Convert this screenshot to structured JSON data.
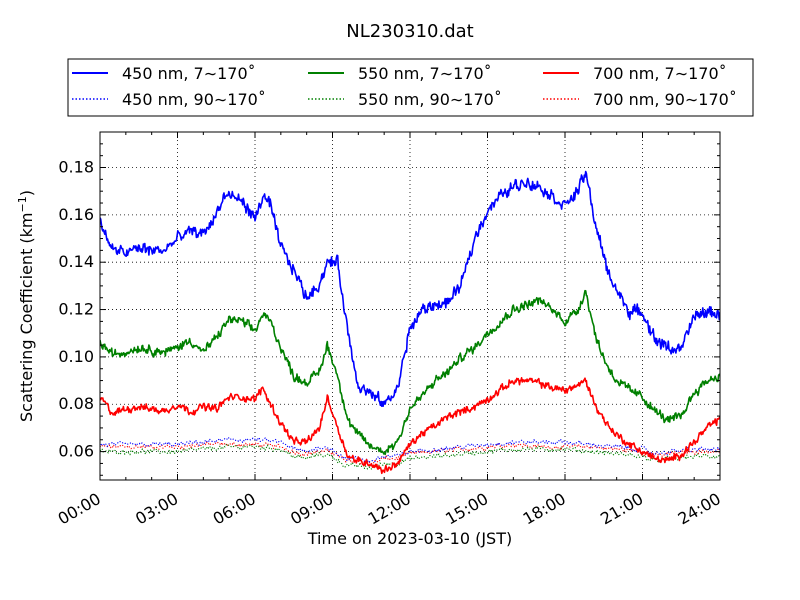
{
  "chart_data": {
    "type": "line",
    "title": "NL230310.dat",
    "xlabel": "Time on 2023-03-10 (JST)",
    "ylabel": "Scattering Coefficient (km",
    "ylabel_exp": "−1",
    "ylabel_close": ")",
    "xlim": [
      "00:00",
      "24:00"
    ],
    "ylim": [
      0.048,
      0.195
    ],
    "x_unit": "hours since 2023-03-10 00:00 JST",
    "x_ticks": [
      "00:00",
      "03:00",
      "06:00",
      "09:00",
      "12:00",
      "15:00",
      "18:00",
      "21:00",
      "24:00"
    ],
    "y_ticks": [
      "0.06",
      "0.08",
      "0.10",
      "0.12",
      "0.14",
      "0.16",
      "0.18"
    ],
    "grid": true,
    "legend_position": "top",
    "legend_columns": 3,
    "series": [
      {
        "name": "450 nm, 7∼170˚",
        "color": "#0000ff",
        "style": "solid",
        "x": [
          0,
          0.5,
          1,
          1.5,
          2,
          2.5,
          3,
          3.5,
          4,
          4.5,
          4.8,
          5,
          5.5,
          6,
          6.3,
          6.6,
          6.9,
          7.2,
          7.5,
          8,
          8.5,
          8.8,
          9.2,
          9.6,
          10,
          10.5,
          11,
          11.5,
          12,
          12.5,
          13,
          13.5,
          14,
          14.5,
          15,
          15.5,
          16,
          16.5,
          17,
          17.5,
          18,
          18.5,
          18.8,
          19.2,
          19.6,
          20,
          20.5,
          21,
          21.5,
          22,
          22.5,
          23,
          23.5,
          24
        ],
        "y": [
          0.157,
          0.145,
          0.144,
          0.146,
          0.145,
          0.145,
          0.15,
          0.153,
          0.152,
          0.16,
          0.168,
          0.168,
          0.166,
          0.158,
          0.168,
          0.164,
          0.15,
          0.142,
          0.137,
          0.125,
          0.131,
          0.14,
          0.14,
          0.11,
          0.088,
          0.084,
          0.08,
          0.086,
          0.112,
          0.12,
          0.122,
          0.123,
          0.131,
          0.15,
          0.162,
          0.168,
          0.172,
          0.174,
          0.172,
          0.168,
          0.164,
          0.17,
          0.178,
          0.155,
          0.138,
          0.128,
          0.119,
          0.119,
          0.107,
          0.104,
          0.103,
          0.117,
          0.119,
          0.118
        ]
      },
      {
        "name": "450 nm, 90∼170˚",
        "color": "#0000ff",
        "style": "dotted",
        "x": [
          0,
          1,
          2,
          3,
          4,
          5,
          6,
          7,
          7.5,
          8,
          8.5,
          9,
          9.5,
          10,
          10.5,
          11,
          11.5,
          12,
          13,
          14,
          15,
          16,
          17,
          18,
          19,
          20,
          21,
          21.5,
          22,
          23,
          24
        ],
        "y": [
          0.063,
          0.063,
          0.063,
          0.063,
          0.064,
          0.065,
          0.065,
          0.064,
          0.061,
          0.06,
          0.062,
          0.061,
          0.057,
          0.057,
          0.056,
          0.058,
          0.058,
          0.06,
          0.061,
          0.062,
          0.063,
          0.064,
          0.064,
          0.064,
          0.063,
          0.062,
          0.061,
          0.059,
          0.06,
          0.061,
          0.061
        ]
      },
      {
        "name": "550 nm, 7∼170˚",
        "color": "#008000",
        "style": "solid",
        "x": [
          0,
          0.5,
          1,
          1.5,
          2,
          2.5,
          3,
          3.5,
          4,
          4.5,
          5,
          5.5,
          6,
          6.3,
          6.6,
          7,
          7.5,
          8,
          8.5,
          8.8,
          9.2,
          9.6,
          10,
          10.5,
          11,
          11.5,
          12,
          12.5,
          13,
          13.5,
          14,
          14.5,
          15,
          15.5,
          16,
          16.5,
          17,
          17.5,
          18,
          18.5,
          18.8,
          19.2,
          19.6,
          20,
          20.5,
          21,
          21.5,
          22,
          22.5,
          23,
          23.5,
          24
        ],
        "y": [
          0.106,
          0.101,
          0.102,
          0.104,
          0.103,
          0.102,
          0.104,
          0.107,
          0.102,
          0.108,
          0.116,
          0.115,
          0.111,
          0.118,
          0.115,
          0.104,
          0.092,
          0.089,
          0.094,
          0.105,
          0.092,
          0.073,
          0.067,
          0.062,
          0.06,
          0.064,
          0.078,
          0.084,
          0.09,
          0.094,
          0.1,
          0.104,
          0.11,
          0.115,
          0.12,
          0.122,
          0.124,
          0.12,
          0.115,
          0.12,
          0.128,
          0.108,
          0.097,
          0.09,
          0.086,
          0.083,
          0.077,
          0.073,
          0.075,
          0.085,
          0.09,
          0.092
        ]
      },
      {
        "name": "550 nm, 90∼170˚",
        "color": "#008000",
        "style": "dotted",
        "x": [
          0,
          1,
          2,
          3,
          4,
          5,
          6,
          7,
          7.5,
          8,
          8.5,
          9,
          9.5,
          10,
          10.5,
          11,
          11.5,
          12,
          13,
          14,
          15,
          16,
          17,
          18,
          19,
          20,
          21,
          21.5,
          22,
          23,
          24
        ],
        "y": [
          0.06,
          0.06,
          0.06,
          0.06,
          0.061,
          0.062,
          0.062,
          0.061,
          0.058,
          0.057,
          0.059,
          0.058,
          0.054,
          0.054,
          0.053,
          0.055,
          0.055,
          0.057,
          0.058,
          0.059,
          0.06,
          0.061,
          0.061,
          0.061,
          0.06,
          0.059,
          0.058,
          0.056,
          0.057,
          0.058,
          0.058
        ]
      },
      {
        "name": "700 nm, 7∼170˚",
        "color": "#ff0000",
        "style": "solid",
        "x": [
          0,
          0.5,
          1,
          1.5,
          2,
          2.5,
          3,
          3.5,
          4,
          4.5,
          5,
          5.5,
          6,
          6.3,
          6.6,
          7,
          7.5,
          8,
          8.5,
          8.8,
          9.2,
          9.6,
          10,
          10.5,
          11,
          11.5,
          12,
          12.5,
          13,
          13.5,
          14,
          14.5,
          15,
          15.5,
          16,
          16.5,
          17,
          17.5,
          18,
          18.5,
          18.8,
          19.2,
          19.6,
          20,
          20.5,
          21,
          21.5,
          22,
          22.5,
          23,
          23.5,
          24
        ],
        "y": [
          0.083,
          0.076,
          0.078,
          0.079,
          0.078,
          0.077,
          0.08,
          0.077,
          0.079,
          0.078,
          0.083,
          0.083,
          0.082,
          0.087,
          0.08,
          0.072,
          0.064,
          0.064,
          0.07,
          0.083,
          0.07,
          0.058,
          0.056,
          0.055,
          0.052,
          0.055,
          0.063,
          0.068,
          0.071,
          0.075,
          0.077,
          0.079,
          0.082,
          0.086,
          0.09,
          0.09,
          0.089,
          0.087,
          0.086,
          0.088,
          0.09,
          0.079,
          0.072,
          0.067,
          0.063,
          0.06,
          0.057,
          0.056,
          0.059,
          0.064,
          0.07,
          0.074
        ]
      },
      {
        "name": "700 nm, 90∼170˚",
        "color": "#ff0000",
        "style": "dotted",
        "x": [
          0,
          1,
          2,
          3,
          4,
          5,
          6,
          7,
          7.5,
          8,
          8.5,
          9,
          9.5,
          10,
          10.5,
          11,
          11.5,
          12,
          13,
          14,
          15,
          16,
          17,
          18,
          19,
          20,
          21,
          21.5,
          22,
          23,
          24
        ],
        "y": [
          0.062,
          0.062,
          0.062,
          0.062,
          0.063,
          0.063,
          0.063,
          0.062,
          0.06,
          0.059,
          0.06,
          0.06,
          0.056,
          0.056,
          0.055,
          0.057,
          0.057,
          0.059,
          0.06,
          0.061,
          0.062,
          0.063,
          0.062,
          0.062,
          0.062,
          0.061,
          0.06,
          0.058,
          0.059,
          0.06,
          0.06
        ]
      }
    ]
  }
}
